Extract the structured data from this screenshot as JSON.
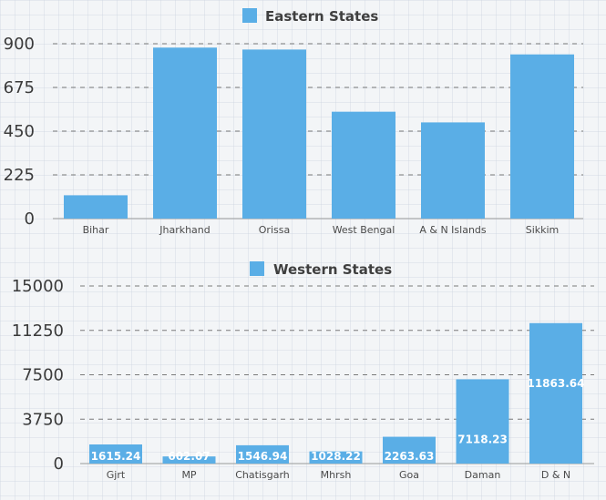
{
  "colors": {
    "bar": "#5aaee6",
    "grid": "#7a7a7a",
    "axis": "#9a9a9a"
  },
  "chart_data": [
    {
      "type": "bar",
      "categories": [
        "Bihar",
        "Jharkhand",
        "Orissa",
        "West Bengal",
        "A & N Islands",
        "Sikkim"
      ],
      "series": [
        {
          "name": "Eastern States",
          "values": [
            120,
            880,
            870,
            550,
            495,
            845
          ]
        }
      ],
      "yticks": [
        "900",
        "675",
        "450",
        "225",
        "0"
      ],
      "ylim": [
        0,
        900
      ],
      "grid": true,
      "legend": "top-center",
      "data_labels": false
    },
    {
      "type": "bar",
      "categories": [
        "Gjrt",
        "MP",
        "Chatisgarh",
        "Mhrsh",
        "Goa",
        "Daman",
        "D & N"
      ],
      "series": [
        {
          "name": "Western States",
          "values": [
            1615.24,
            602.07,
            1546.94,
            1028.22,
            2263.63,
            7118.23,
            11863.64
          ]
        }
      ],
      "data_labels": [
        "1615.24",
        "602.07",
        "1546.94",
        "1028.22",
        "2263.63",
        "7118.23",
        "11863.64"
      ],
      "yticks": [
        "15000",
        "11250",
        "7500",
        "3750",
        "0"
      ],
      "ylim": [
        0,
        15000
      ],
      "grid": true,
      "legend": "top-center"
    }
  ]
}
